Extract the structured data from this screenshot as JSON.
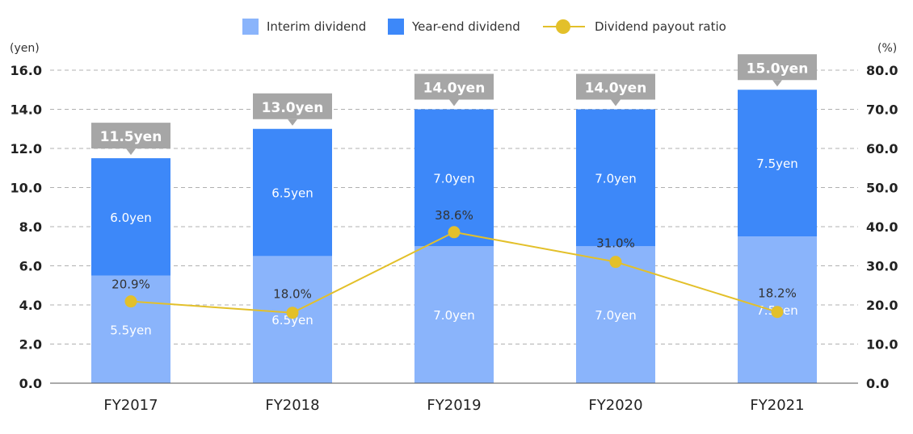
{
  "legend": {
    "interim": "Interim dividend",
    "year_end": "Year-end dividend",
    "payout": "Dividend payout ratio"
  },
  "units": {
    "left": "(yen)",
    "right": "(%)"
  },
  "colors": {
    "interim": "#8ab4fb",
    "year_end": "#3d88f9",
    "payout": "#e3c02a",
    "total_box": "#a6a6a6",
    "grid": "#b0b0b0"
  },
  "chart_data": {
    "type": "bar",
    "stacked": true,
    "categories": [
      "FY2017",
      "FY2018",
      "FY2019",
      "FY2020",
      "FY2021"
    ],
    "series": [
      {
        "name": "Interim dividend",
        "values": [
          5.5,
          6.5,
          7.0,
          7.0,
          7.5
        ],
        "labels": [
          "5.5yen",
          "6.5yen",
          "7.0yen",
          "7.0yen",
          "7.5yen"
        ]
      },
      {
        "name": "Year-end dividend",
        "values": [
          6.0,
          6.5,
          7.0,
          7.0,
          7.5
        ],
        "labels": [
          "6.0yen",
          "6.5yen",
          "7.0yen",
          "7.0yen",
          "7.5yen"
        ]
      }
    ],
    "totals": [
      11.5,
      13.0,
      14.0,
      14.0,
      15.0
    ],
    "total_labels": [
      "11.5yen",
      "13.0yen",
      "14.0yen",
      "14.0yen",
      "15.0yen"
    ],
    "line_series": {
      "name": "Dividend payout ratio",
      "axis": "right",
      "values": [
        20.9,
        18.0,
        38.6,
        31.0,
        18.2
      ],
      "labels": [
        "20.9%",
        "18.0%",
        "38.6%",
        "31.0%",
        "18.2%"
      ]
    },
    "y_left": {
      "range": [
        0,
        16
      ],
      "ticks": [
        "0.0",
        "2.0",
        "4.0",
        "6.0",
        "8.0",
        "10.0",
        "12.0",
        "14.0",
        "16.0"
      ]
    },
    "y_right": {
      "range": [
        0,
        80
      ],
      "ticks": [
        "0.0",
        "10.0",
        "20.0",
        "30.0",
        "40.0",
        "50.0",
        "60.0",
        "70.0",
        "80.0"
      ]
    },
    "grid": true,
    "legend_position": "top"
  }
}
